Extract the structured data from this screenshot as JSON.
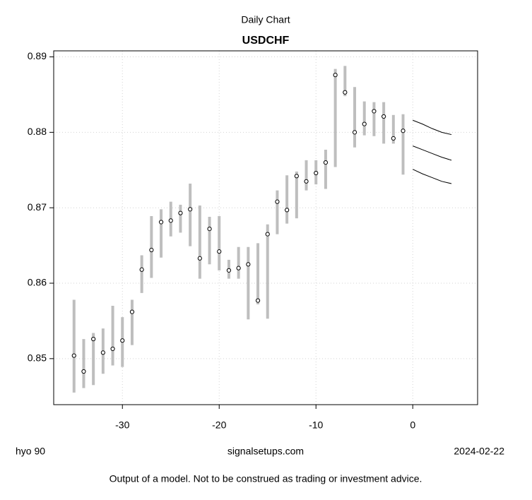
{
  "chart_data": {
    "type": "range",
    "title": "Daily Chart",
    "subtitle": "USDCHF",
    "x": [
      -35,
      -34,
      -33,
      -32,
      -31,
      -30,
      -29,
      -28,
      -27,
      -26,
      -25,
      -24,
      -23,
      -22,
      -21,
      -20,
      -19,
      -18,
      -17,
      -16,
      -15,
      -14,
      -13,
      -12,
      -11,
      -10,
      -9,
      -8,
      -7,
      -6,
      -5,
      -4,
      -3,
      -2,
      -1
    ],
    "close": [
      0.8504,
      0.8483,
      0.8526,
      0.8508,
      0.8513,
      0.8524,
      0.8562,
      0.8618,
      0.8644,
      0.8681,
      0.8683,
      0.8693,
      0.8698,
      0.8633,
      0.8672,
      0.8642,
      0.8617,
      0.862,
      0.8625,
      0.8577,
      0.8665,
      0.8708,
      0.8697,
      0.8742,
      0.8735,
      0.8746,
      0.876,
      0.8876,
      0.8853,
      0.88,
      0.8811,
      0.8828,
      0.8821,
      0.8792,
      0.8802
    ],
    "high": [
      0.8578,
      0.8526,
      0.8534,
      0.854,
      0.857,
      0.8555,
      0.8578,
      0.8637,
      0.8689,
      0.8698,
      0.8708,
      0.8704,
      0.8732,
      0.8703,
      0.8688,
      0.8689,
      0.8631,
      0.8648,
      0.8648,
      0.8653,
      0.8678,
      0.8723,
      0.8743,
      0.8748,
      0.8763,
      0.8763,
      0.8777,
      0.8884,
      0.8888,
      0.886,
      0.8841,
      0.884,
      0.884,
      0.8823,
      0.8824
    ],
    "low": [
      0.8455,
      0.8461,
      0.8465,
      0.848,
      0.8491,
      0.8489,
      0.8518,
      0.8587,
      0.8607,
      0.8634,
      0.8662,
      0.8667,
      0.8649,
      0.8606,
      0.8625,
      0.8617,
      0.8606,
      0.8606,
      0.8552,
      0.8572,
      0.8553,
      0.8665,
      0.8679,
      0.8686,
      0.8723,
      0.8731,
      0.8725,
      0.8754,
      0.8848,
      0.878,
      0.8796,
      0.8795,
      0.8785,
      0.8785,
      0.8744
    ],
    "range_color": "#bebebe",
    "forecast_x": [
      0,
      1,
      2,
      3,
      4
    ],
    "forecast": [
      {
        "color": "#000000",
        "values": [
          0.8816,
          0.8811,
          0.8805,
          0.88,
          0.8797
        ]
      },
      {
        "color": "#000000",
        "values": [
          0.8782,
          0.8777,
          0.8772,
          0.8767,
          0.8763
        ]
      },
      {
        "color": "#000000",
        "values": [
          0.8751,
          0.8745,
          0.874,
          0.8735,
          0.8732
        ]
      }
    ],
    "xlim": [
      -37.1,
      6.7
    ],
    "ylim": [
      0.8439,
      0.8908
    ],
    "xticks": [
      -30,
      -20,
      -10,
      0
    ],
    "yticks": [
      0.85,
      0.86,
      0.87,
      0.88,
      0.89
    ],
    "grid": true,
    "footer_left": "hyo 90",
    "footer_center": "signalsetups.com",
    "footer_right": "2024-02-22",
    "disclaimer": "Output of a model. Not to be construed as trading or investment advice."
  }
}
